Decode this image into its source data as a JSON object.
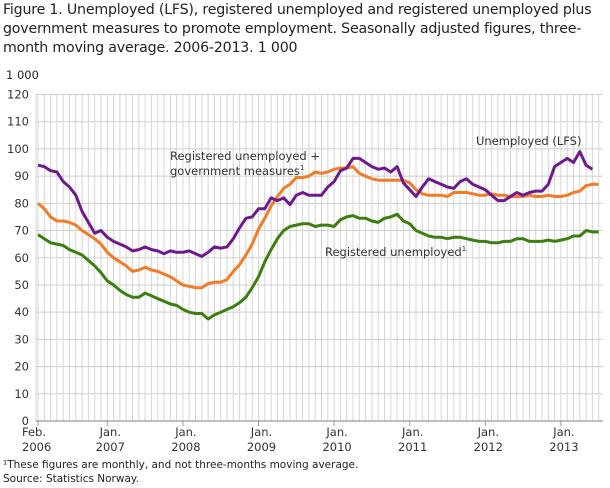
{
  "title": "Figure 1. Unemployed (LFS), registered unemployed and registered unemployed plus government measures to promote employment. Seasonally adjusted figures, three-month moving average. 2006-2013. 1 000",
  "footnote": "¹These figures are monthly, and not three-months moving average.",
  "source": "Source: Statistics Norway.",
  "chart_data": {
    "type": "line",
    "unit_label": "1 000",
    "ylim": [
      0,
      120
    ],
    "yticks": [
      "0",
      "10",
      "20",
      "30",
      "40",
      "50",
      "60",
      "70",
      "80",
      "90",
      "100",
      "110",
      "120"
    ],
    "x_start": "Feb. 2006",
    "xtick_labels": [
      {
        "month": "Feb.",
        "year": "2006",
        "index": 0
      },
      {
        "month": "Jan.",
        "year": "2007",
        "index": 11
      },
      {
        "month": "Jan.",
        "year": "2008",
        "index": 23
      },
      {
        "month": "Jan.",
        "year": "2009",
        "index": 35
      },
      {
        "month": "Jan.",
        "year": "2010",
        "index": 47
      },
      {
        "month": "Jan.",
        "year": "2011",
        "index": 59
      },
      {
        "month": "Jan.",
        "year": "2012",
        "index": 71
      },
      {
        "month": "Jan.",
        "year": "2013",
        "index": 83
      }
    ],
    "grid": true,
    "series": [
      {
        "name": "Unemployed (LFS)",
        "color": "#6e1a8e",
        "values": [
          94,
          93.5,
          92,
          91.5,
          88,
          86,
          83,
          77,
          73,
          69,
          70,
          67.5,
          66,
          65,
          64,
          62.5,
          63,
          64,
          63,
          62.5,
          61.5,
          62.5,
          62,
          62,
          62.5,
          61.5,
          60.5,
          62,
          64,
          63.5,
          64,
          67,
          71,
          74.5,
          75,
          78,
          78,
          82,
          81,
          82,
          79.5,
          83,
          84,
          83,
          83,
          83,
          86,
          88,
          92,
          93,
          96.5,
          96.5,
          95,
          93.5,
          92.5,
          93,
          91.5,
          93.5,
          87.5,
          85,
          82.5,
          86,
          89,
          88,
          87,
          86,
          85.5,
          88,
          89,
          87,
          86,
          85,
          83,
          81,
          81,
          82.5,
          84,
          83,
          84,
          84.5,
          84.5,
          87,
          93.5,
          95,
          96.5,
          95,
          99,
          94,
          92.5
        ]
      },
      {
        "name": "Registered unemployed + government measures¹",
        "color": "#f07c28",
        "values": [
          80,
          78,
          75,
          73.5,
          73.5,
          73,
          72,
          70,
          68.5,
          67,
          65,
          62,
          60,
          58.5,
          57,
          55,
          55.5,
          56.5,
          55.5,
          55,
          54,
          53,
          51.5,
          50,
          49.5,
          49,
          49,
          50.5,
          51,
          51,
          52,
          55,
          57.5,
          61,
          65,
          70.5,
          74.5,
          79,
          82.5,
          85.5,
          87,
          89.5,
          89.5,
          90,
          91.5,
          91,
          91.5,
          92.5,
          93,
          93,
          93.5,
          91,
          90,
          89,
          88.5,
          88.5,
          88.5,
          88.5,
          88.5,
          87.5,
          85,
          83.5,
          83,
          83,
          83,
          82.5,
          84,
          84,
          84,
          83.5,
          83,
          83,
          83.5,
          83,
          83,
          82.5,
          82.5,
          82.5,
          83,
          82.5,
          82.5,
          83,
          82.5,
          82.5,
          83,
          84,
          84.5,
          86.5,
          87,
          87
        ]
      },
      {
        "name": "Registered unemployed¹",
        "color": "#3d7e10",
        "values": [
          68.5,
          67,
          65.5,
          65,
          64.5,
          63,
          62,
          61,
          59,
          57,
          54.5,
          51.5,
          50,
          48,
          46.5,
          45.5,
          45.5,
          47,
          46,
          45,
          44,
          43,
          42.5,
          41,
          40,
          39.5,
          39.5,
          37.5,
          39,
          40,
          41,
          42,
          43.5,
          45.5,
          49,
          53,
          58.5,
          63,
          67,
          70,
          71.5,
          72,
          72.5,
          72.5,
          71.5,
          72,
          72,
          71.5,
          74,
          75,
          75.5,
          74.5,
          74.5,
          73.5,
          73,
          74.5,
          75,
          76,
          73.5,
          72.5,
          70,
          69,
          68,
          67.5,
          67.5,
          67,
          67.5,
          67.5,
          67,
          66.5,
          66,
          66,
          65.5,
          65.5,
          66,
          66,
          67,
          67,
          66,
          66,
          66,
          66.5,
          66,
          66.5,
          67,
          68,
          68,
          70,
          69.5,
          69.5
        ]
      }
    ],
    "annotations": {
      "lfs": "Unemployed (LFS)",
      "reg_plus_line1": "Registered unemployed +",
      "reg_plus_line2": "government measures",
      "reg": "Registered unemployed",
      "sup": "1"
    }
  }
}
